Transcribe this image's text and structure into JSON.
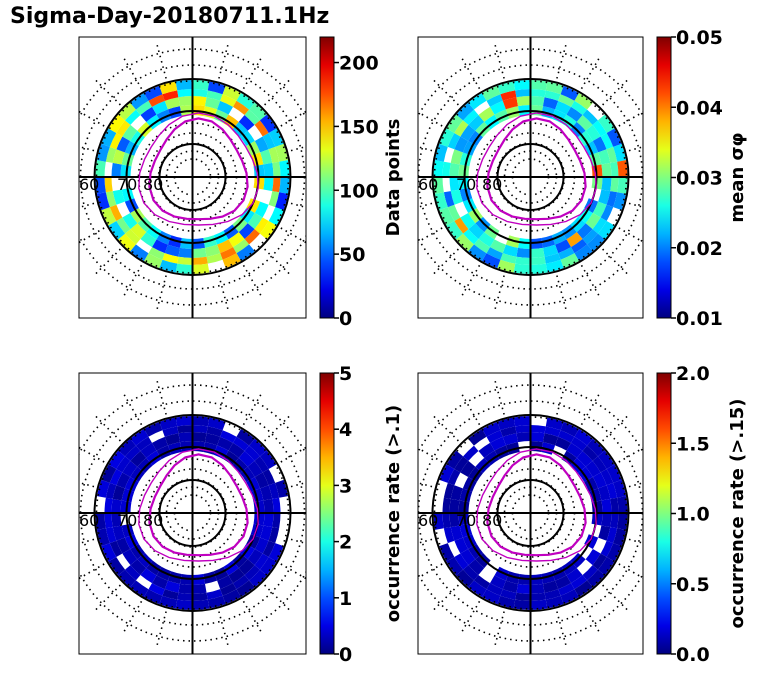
{
  "title": "Sigma-Day-20180711.1Hz",
  "colors": {
    "ring": "#000000",
    "oval": "#c000c0",
    "frame": "#000000"
  },
  "chart_data": [
    {
      "type": "heatmap",
      "projection": "polar",
      "lat_labels": [
        "60",
        "70",
        "80"
      ],
      "colorbar": {
        "label": "Data points",
        "cmap": "jet",
        "range": [
          0,
          220
        ],
        "ticks": [
          "0",
          "50",
          "100",
          "150",
          "200"
        ],
        "tick_values": [
          0,
          50,
          100,
          150,
          200
        ]
      }
    },
    {
      "type": "heatmap",
      "projection": "polar",
      "lat_labels": [
        "60",
        "70",
        "80"
      ],
      "colorbar": {
        "label": "mean σφ",
        "cmap": "jet",
        "range": [
          0.01,
          0.05
        ],
        "ticks": [
          "0.01",
          "0.02",
          "0.03",
          "0.04",
          "0.05"
        ],
        "tick_values": [
          0.01,
          0.02,
          0.03,
          0.04,
          0.05
        ]
      }
    },
    {
      "type": "heatmap",
      "projection": "polar",
      "lat_labels": [
        "60",
        "70",
        "80"
      ],
      "colorbar": {
        "label": "occurrence rate (>.1)",
        "cmap": "jet",
        "range": [
          0,
          5
        ],
        "ticks": [
          "0",
          "1",
          "2",
          "3",
          "4",
          "5"
        ],
        "tick_values": [
          0,
          1,
          2,
          3,
          4,
          5
        ]
      }
    },
    {
      "type": "heatmap",
      "projection": "polar",
      "lat_labels": [
        "60",
        "70",
        "80"
      ],
      "colorbar": {
        "label": "occurrence rate (>.15)",
        "cmap": "jet",
        "range": [
          0,
          2
        ],
        "ticks": [
          "0.0",
          "0.5",
          "1.0",
          "1.5",
          "2.0"
        ],
        "tick_values": [
          0,
          0.5,
          1.0,
          1.5,
          2.0
        ]
      }
    }
  ]
}
